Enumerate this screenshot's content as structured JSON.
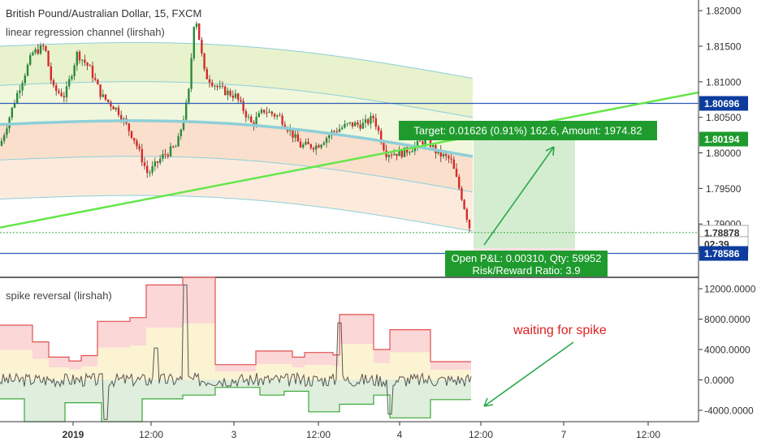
{
  "header": {
    "title": "British Pound/Australian Dollar, 15, FXCM",
    "indicator1": "linear regression channel (lirshah)",
    "indicator2": "spike reversal (lirshah)"
  },
  "colors": {
    "green_line": "#66e64a",
    "blue_line": "#2b5cb8",
    "candle": "#d62a2a",
    "candle_outline": "#1a6b2a",
    "band_upper": "#e8f2cc",
    "band_lower": "#fae0cc",
    "channel_mid": "#8ecfd8",
    "target_zone": "#d4edd0",
    "target_label_bg": "#1f9b2e",
    "red_line": "#e05050",
    "price_tag_blue": "#0d3c9e",
    "annotation": "#e02020"
  },
  "chart_data": [
    {
      "type": "line",
      "panel": "price",
      "y_ticks": [
        "1.82000",
        "1.81500",
        "1.81000",
        "1.80500",
        "1.80000",
        "1.79500",
        "1.79000"
      ],
      "ylim": [
        1.7825,
        1.8215
      ],
      "series": [
        {
          "kind": "trendline",
          "from": [
            0,
            1.7895
          ],
          "to": [
            1,
            1.8085
          ]
        },
        {
          "kind": "horizontal",
          "value": 1.80696
        },
        {
          "kind": "horizontal",
          "value": 1.78586
        },
        {
          "kind": "dotted-horizontal",
          "value": 1.78878
        }
      ],
      "price_tags": [
        {
          "text": "1.80696",
          "value": 1.80696,
          "style": "blue"
        },
        {
          "text": "1.80194",
          "value": 1.80194,
          "style": "green"
        },
        {
          "text": "1.78878",
          "value": 1.78878,
          "style": "outline"
        },
        {
          "text": "02:39",
          "value": 1.7872,
          "style": "outline"
        },
        {
          "text": "1.78586",
          "value": 1.78586,
          "style": "blue"
        }
      ],
      "target_label": "Target: 0.01626 (0.91%) 162.6, Amount: 1974.82",
      "pnl_label_1": "Open P&L: 0.00310, Qty: 59952",
      "pnl_label_2": "Risk/Reward Ratio: 3.9"
    },
    {
      "type": "line",
      "panel": "indicator",
      "y_ticks": [
        "12000.0000",
        "8000.0000",
        "4000.0000",
        "0.0000",
        "-4000.0000"
      ],
      "ylim": [
        -5500,
        13500
      ]
    }
  ],
  "x_ticks": [
    "2019",
    "12:00",
    "3",
    "12:00",
    "4",
    "12:00",
    "7",
    "12:00"
  ],
  "annotation": "waiting for spike"
}
